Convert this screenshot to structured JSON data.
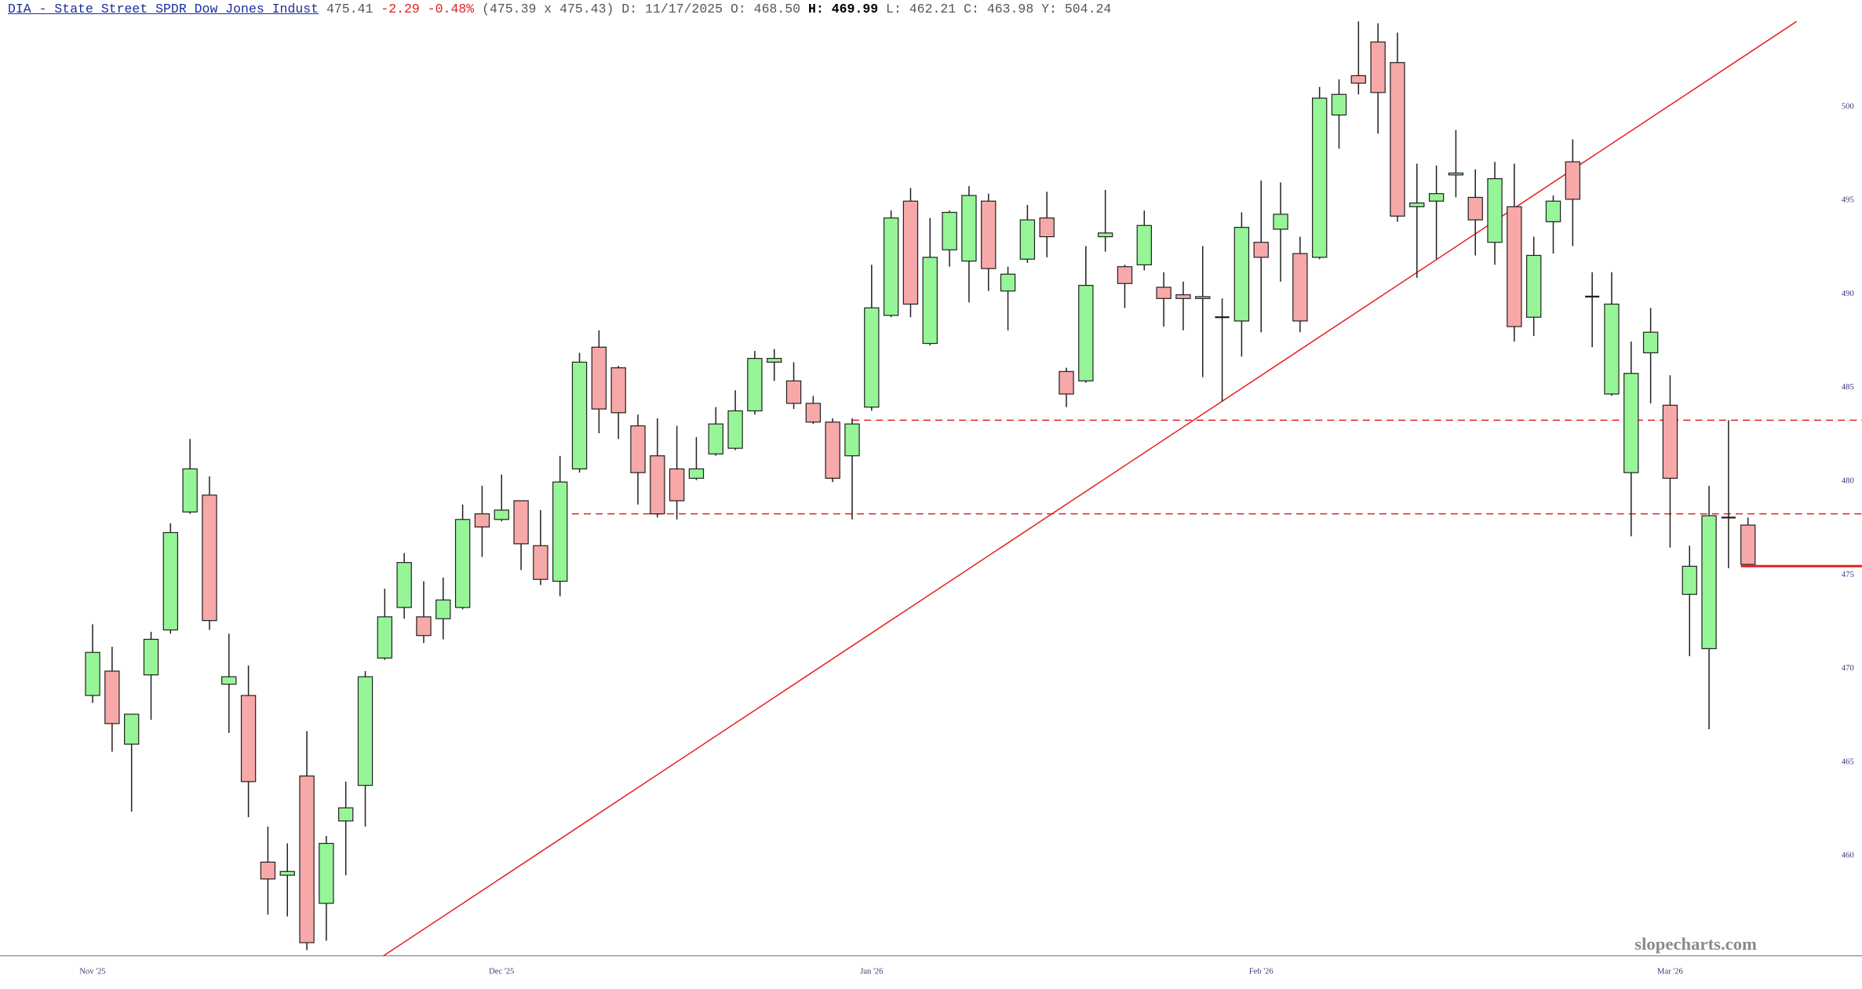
{
  "header": {
    "symbol": "DIA - State Street SPDR Dow Jones Indust",
    "last": "475.41",
    "change": "-2.29",
    "change_pct": "-0.48%",
    "bid_ask": "(475.39 x 475.43)",
    "stats": [
      {
        "label": "D:",
        "value": "11/17/2025"
      },
      {
        "label": "O:",
        "value": "468.50"
      },
      {
        "label": "H:",
        "value": "469.99"
      },
      {
        "label": "L:",
        "value": "462.21"
      },
      {
        "label": "C:",
        "value": "463.98"
      },
      {
        "label": "Y:",
        "value": "504.24"
      }
    ]
  },
  "watermark": "slopecharts.com",
  "chart_data": {
    "type": "candlestick",
    "categories": [
      "Nov '25",
      null,
      null,
      null,
      null,
      null,
      null,
      null,
      null,
      null,
      null,
      null,
      null,
      null,
      null,
      null,
      null,
      null,
      null,
      null,
      null,
      "Dec '25",
      null,
      null,
      null,
      null,
      null,
      null,
      null,
      null,
      null,
      null,
      null,
      null,
      null,
      null,
      null,
      null,
      null,
      null,
      "Jan '26",
      null,
      null,
      null,
      null,
      null,
      null,
      null,
      null,
      null,
      null,
      null,
      null,
      null,
      null,
      null,
      null,
      null,
      null,
      null,
      "Feb '26",
      null,
      null,
      null,
      null,
      null,
      null,
      null,
      null,
      null,
      null,
      null,
      null,
      null,
      null,
      null,
      null,
      null,
      null,
      null,
      null,
      "Mar '26",
      null,
      null,
      null,
      null
    ],
    "open": [
      468.5,
      469.8,
      465.9,
      469.6,
      472.0,
      478.3,
      479.2,
      469.1,
      468.5,
      459.6,
      458.9,
      464.2,
      457.4,
      461.8,
      463.7,
      470.5,
      473.2,
      472.7,
      472.6,
      473.2,
      478.2,
      477.9,
      478.9,
      476.5,
      474.6,
      480.6,
      487.1,
      486.0,
      482.9,
      481.3,
      480.6,
      480.1,
      481.4,
      481.7,
      483.7,
      486.3,
      485.3,
      484.1,
      483.1,
      481.3,
      483.9,
      488.8,
      494.9,
      487.3,
      492.3,
      491.7,
      494.9,
      490.1,
      491.8,
      494.0,
      485.8,
      485.3,
      493.0,
      491.4,
      491.5,
      490.3,
      489.9,
      489.7,
      488.7,
      488.5,
      492.7,
      493.4,
      492.1,
      491.9,
      499.5,
      501.6,
      503.4,
      502.3,
      494.6,
      494.9,
      496.3,
      495.1,
      492.7,
      494.6,
      488.7,
      493.8,
      497.0,
      489.8,
      484.6,
      480.4,
      486.8,
      484.0,
      473.9,
      471.0,
      478.0,
      477.6
    ],
    "high": [
      472.3,
      471.1,
      467.5,
      471.9,
      477.7,
      482.2,
      480.2,
      471.8,
      470.1,
      461.5,
      460.6,
      466.6,
      461.0,
      463.9,
      469.8,
      474.2,
      476.1,
      474.6,
      474.8,
      478.7,
      479.7,
      480.3,
      478.9,
      478.4,
      481.3,
      486.8,
      488.0,
      486.1,
      483.5,
      483.3,
      482.9,
      482.3,
      483.9,
      484.8,
      486.9,
      487.0,
      486.3,
      484.5,
      483.3,
      483.3,
      491.5,
      494.4,
      495.6,
      494.0,
      494.4,
      495.7,
      495.3,
      491.4,
      494.7,
      495.4,
      486.0,
      492.5,
      495.5,
      491.5,
      494.4,
      491.1,
      490.6,
      492.5,
      489.7,
      494.3,
      496.0,
      495.9,
      493.0,
      501.0,
      501.4,
      504.5,
      504.4,
      503.9,
      496.9,
      496.8,
      498.7,
      496.6,
      497.0,
      496.9,
      493.0,
      495.2,
      498.2,
      491.1,
      491.1,
      487.4,
      489.2,
      485.6,
      476.5,
      479.7,
      483.2,
      478.0
    ],
    "low": [
      468.1,
      465.5,
      462.3,
      467.2,
      471.8,
      478.2,
      472.0,
      466.5,
      462.0,
      456.8,
      456.7,
      454.9,
      455.4,
      458.9,
      461.5,
      470.4,
      472.6,
      471.3,
      471.5,
      473.1,
      475.9,
      477.8,
      475.2,
      474.4,
      473.8,
      480.4,
      482.5,
      482.2,
      478.7,
      478.0,
      477.9,
      480.0,
      481.3,
      481.6,
      483.5,
      485.3,
      483.8,
      483.0,
      479.9,
      477.9,
      483.7,
      488.7,
      488.7,
      487.2,
      491.4,
      489.5,
      490.1,
      488.0,
      491.6,
      491.9,
      483.9,
      485.2,
      492.2,
      489.2,
      491.2,
      488.2,
      488.0,
      485.5,
      484.2,
      486.6,
      487.9,
      490.6,
      487.9,
      491.8,
      497.7,
      500.6,
      498.5,
      493.8,
      490.8,
      491.8,
      495.1,
      492.0,
      491.5,
      487.4,
      487.7,
      492.1,
      492.5,
      487.1,
      484.5,
      477.0,
      484.1,
      476.4,
      470.6,
      466.7,
      475.3,
      475.4
    ],
    "close": [
      470.8,
      467.0,
      467.5,
      471.5,
      477.2,
      480.6,
      472.5,
      469.5,
      463.9,
      458.7,
      459.1,
      455.3,
      460.6,
      462.5,
      469.5,
      472.7,
      475.6,
      471.7,
      473.6,
      477.9,
      477.5,
      478.4,
      476.6,
      474.7,
      479.9,
      486.3,
      483.8,
      483.6,
      480.4,
      478.2,
      478.9,
      480.6,
      483.0,
      483.7,
      486.5,
      486.5,
      484.1,
      483.1,
      480.1,
      483.0,
      489.2,
      494.0,
      489.4,
      491.9,
      494.3,
      495.2,
      491.3,
      491.0,
      493.9,
      493.0,
      484.6,
      490.4,
      493.2,
      490.5,
      493.6,
      489.7,
      489.7,
      489.8,
      488.7,
      493.5,
      491.9,
      494.2,
      488.5,
      500.4,
      500.6,
      501.2,
      500.7,
      494.1,
      494.8,
      495.3,
      496.4,
      493.9,
      496.1,
      488.2,
      492.0,
      494.9,
      495.0,
      489.8,
      489.4,
      485.7,
      487.9,
      480.1,
      475.4,
      478.1,
      478.0,
      475.5
    ],
    "up_color": "#96f596",
    "down_color": "#f7a8a8",
    "ylim": [
      454.6,
      504.5
    ],
    "yticks": [
      460,
      465,
      470,
      475,
      480,
      485,
      490,
      495,
      500
    ],
    "levels": [
      {
        "value": 483.2,
        "from": 39
      },
      {
        "value": 478.2,
        "from": 24
      }
    ],
    "last_price": 475.41,
    "trendline": {
      "x": [
        14.94,
        87.5
      ],
      "y": [
        454.6,
        504.5
      ]
    },
    "line_color": "#e62020"
  }
}
